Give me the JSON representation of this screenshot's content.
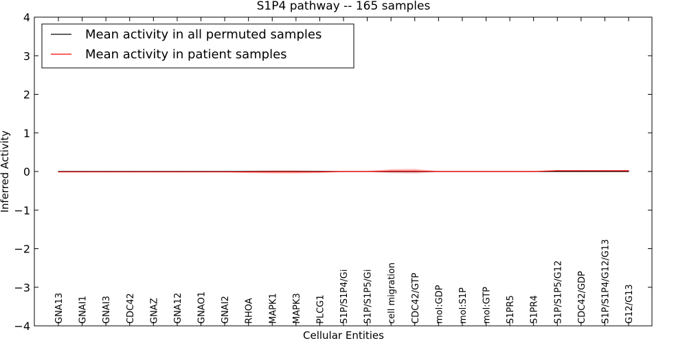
{
  "chart_data": {
    "type": "line",
    "title": "S1P4 pathway -- 165 samples",
    "xlabel": "Cellular Entities",
    "ylabel": "Inferred Activity",
    "ylim": [
      -4,
      4
    ],
    "yticks": [
      -4,
      -3,
      -2,
      -1,
      0,
      1,
      2,
      3,
      4
    ],
    "ytick_labels": [
      "−4",
      "−3",
      "−2",
      "−1",
      "0",
      "1",
      "2",
      "3",
      "4"
    ],
    "grid": false,
    "legend_position": "top-left",
    "categories": [
      "GNA13",
      "GNAI1",
      "GNAI3",
      "CDC42",
      "GNAZ",
      "GNA12",
      "GNAO1",
      "GNAI2",
      "RHOA",
      "MAPK1",
      "MAPK3",
      "PLCG1",
      "S1P/S1P4/Gi",
      "S1P/S1P5/Gi",
      "cell migration",
      "CDC42/GTP",
      "mol:GDP",
      "mol:S1P",
      "mol:GTP",
      "S1PR5",
      "S1PR4",
      "S1P/S1P5/G12",
      "CDC42/GDP",
      "S1P/S1P4/G12/G13",
      "G12/G13"
    ],
    "series": [
      {
        "name": "Mean activity in all permuted samples",
        "color": "#000000",
        "values": [
          0,
          0,
          0,
          0,
          0,
          0,
          0,
          0,
          0,
          0,
          0,
          0,
          0,
          0,
          0,
          0,
          0,
          0,
          0,
          0,
          0,
          0,
          0,
          0,
          0
        ]
      },
      {
        "name": "Mean activity in patient samples",
        "color": "#ff0000",
        "values": [
          -0.01,
          -0.01,
          -0.01,
          -0.01,
          -0.01,
          -0.01,
          -0.01,
          -0.01,
          -0.01,
          -0.01,
          -0.01,
          -0.01,
          0.0,
          0.0,
          0.01,
          0.01,
          0.0,
          0.0,
          0.0,
          0.0,
          0.0,
          0.02,
          0.02,
          0.02,
          0.02
        ],
        "band_half_width": [
          0.01,
          0.01,
          0.01,
          0.01,
          0.01,
          0.01,
          0.01,
          0.01,
          0.03,
          0.04,
          0.04,
          0.03,
          0.01,
          0.01,
          0.05,
          0.06,
          0.01,
          0.01,
          0.01,
          0.01,
          0.01,
          0.01,
          0.01,
          0.01,
          0.01
        ]
      }
    ]
  }
}
